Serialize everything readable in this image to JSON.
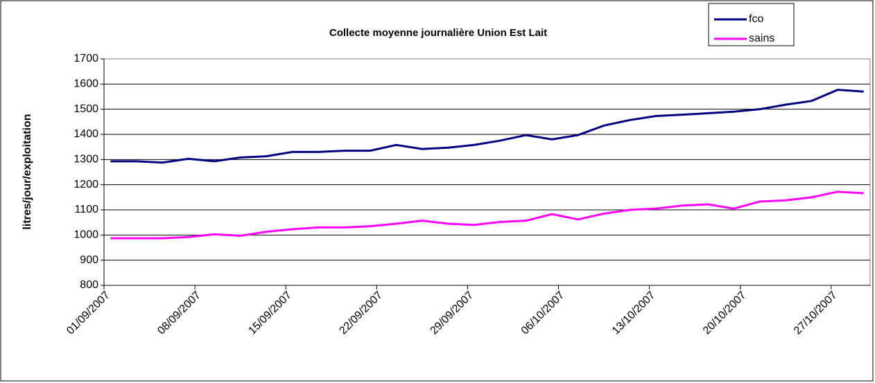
{
  "chart_data": {
    "type": "line",
    "title": "Collecte moyenne journalière Union Est Lait",
    "y_label": "litres/jour/exploitation",
    "x": [
      "01/09/2007",
      "03/09/2007",
      "05/09/2007",
      "07/09/2007",
      "09/09/2007",
      "11/09/2007",
      "13/09/2007",
      "15/09/2007",
      "17/09/2007",
      "19/09/2007",
      "21/09/2007",
      "23/09/2007",
      "25/09/2007",
      "27/09/2007",
      "29/09/2007",
      "01/10/2007",
      "03/10/2007",
      "05/10/2007",
      "07/10/2007",
      "09/10/2007",
      "11/10/2007",
      "13/10/2007",
      "15/10/2007",
      "17/10/2007",
      "19/10/2007",
      "21/10/2007",
      "23/10/2007",
      "25/10/2007",
      "27/10/2007",
      "29/10/2007"
    ],
    "series": [
      {
        "name": "fco",
        "color": "#000080",
        "values": [
          1293,
          1293,
          1288,
          1303,
          1293,
          1308,
          1313,
          1330,
          1330,
          1335,
          1335,
          1358,
          1342,
          1347,
          1358,
          1375,
          1397,
          1380,
          1397,
          1435,
          1457,
          1473,
          1478,
          1484,
          1490,
          1500,
          1518,
          1533,
          1577,
          1570
        ]
      },
      {
        "name": "sains",
        "color": "#ff00ff",
        "values": [
          987,
          987,
          987,
          992,
          1003,
          997,
          1013,
          1023,
          1030,
          1030,
          1035,
          1045,
          1057,
          1045,
          1040,
          1052,
          1057,
          1083,
          1062,
          1085,
          1100,
          1105,
          1117,
          1122,
          1105,
          1133,
          1138,
          1150,
          1172,
          1166
        ]
      }
    ],
    "xlim": [
      "01/09/2007",
      "30/10/2007"
    ],
    "xticks": [
      "01/09/2007",
      "08/09/2007",
      "15/09/2007",
      "22/09/2007",
      "29/09/2007",
      "06/10/2007",
      "13/10/2007",
      "20/10/2007",
      "27/10/2007"
    ],
    "ylim": [
      800,
      1700
    ],
    "yticks": [
      800,
      900,
      1000,
      1100,
      1200,
      1300,
      1400,
      1500,
      1600,
      1700
    ],
    "grid": true,
    "legend": "top-right"
  }
}
